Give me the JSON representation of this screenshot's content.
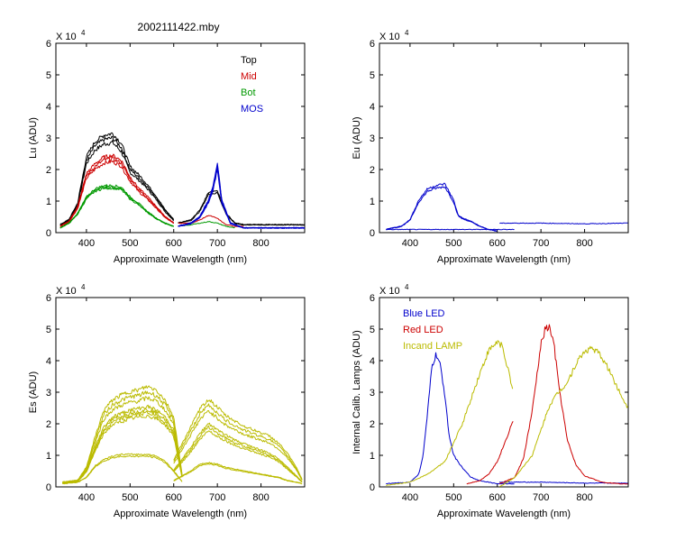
{
  "figure": {
    "title": "2002111422.mby"
  },
  "chart_data": [
    {
      "id": "lu",
      "type": "line",
      "ylabel": "Lu (ADU)",
      "xlabel": "Approximate Wavelength (nm)",
      "scale_label": "X 10",
      "scale_exp": "4",
      "xlim": [
        330,
        900
      ],
      "ylim": [
        0,
        6
      ],
      "xticks": [
        400,
        500,
        600,
        700,
        800
      ],
      "yticks": [
        0,
        1,
        2,
        3,
        4,
        5,
        6
      ],
      "legend": [
        {
          "label": "Top",
          "color": "#000000"
        },
        {
          "label": "Mid",
          "color": "#cc0000"
        },
        {
          "label": "Bot",
          "color": "#009900"
        },
        {
          "label": "MOS",
          "color": "#0000cc"
        }
      ],
      "series": [
        {
          "name": "Top",
          "color": "#000000",
          "copies": 3,
          "spread": 0.08,
          "x": [
            340,
            360,
            380,
            400,
            420,
            440,
            460,
            480,
            500,
            520,
            540,
            560,
            580,
            600
          ],
          "y": [
            0.25,
            0.4,
            0.9,
            2.3,
            2.75,
            2.95,
            3.0,
            2.7,
            2.0,
            1.75,
            1.45,
            1.1,
            0.7,
            0.4
          ]
        },
        {
          "name": "Mid",
          "color": "#cc0000",
          "copies": 3,
          "spread": 0.07,
          "x": [
            340,
            360,
            380,
            400,
            420,
            440,
            460,
            480,
            500,
            520,
            540,
            560,
            580,
            600
          ],
          "y": [
            0.2,
            0.35,
            0.8,
            1.8,
            2.1,
            2.3,
            2.35,
            2.2,
            1.7,
            1.35,
            1.1,
            0.8,
            0.5,
            0.3
          ]
        },
        {
          "name": "Bot",
          "color": "#009900",
          "copies": 3,
          "spread": 0.05,
          "x": [
            340,
            360,
            380,
            400,
            420,
            440,
            460,
            480,
            500,
            520,
            540,
            560,
            580,
            600
          ],
          "y": [
            0.15,
            0.3,
            0.6,
            1.1,
            1.35,
            1.45,
            1.45,
            1.4,
            1.1,
            0.9,
            0.65,
            0.45,
            0.3,
            0.2
          ]
        },
        {
          "name": "Top NIR",
          "color": "#000000",
          "copies": 2,
          "spread": 0.05,
          "x": [
            610,
            640,
            660,
            680,
            700,
            720,
            740,
            760,
            800,
            840,
            880,
            900
          ],
          "y": [
            0.3,
            0.4,
            0.7,
            1.25,
            1.3,
            0.6,
            0.3,
            0.25,
            0.25,
            0.25,
            0.25,
            0.25
          ]
        },
        {
          "name": "Mid NIR",
          "color": "#cc0000",
          "copies": 1,
          "spread": 0.0,
          "x": [
            610,
            640,
            660,
            680,
            700,
            720,
            740,
            760
          ],
          "y": [
            0.3,
            0.3,
            0.4,
            0.55,
            0.45,
            0.25,
            0.2,
            0.2
          ]
        },
        {
          "name": "Bot NIR",
          "color": "#009900",
          "copies": 1,
          "spread": 0.0,
          "x": [
            610,
            640,
            660,
            680,
            700,
            720,
            740
          ],
          "y": [
            0.2,
            0.25,
            0.3,
            0.35,
            0.3,
            0.2,
            0.15
          ]
        },
        {
          "name": "MOS",
          "color": "#0000cc",
          "copies": 5,
          "spread": 0.08,
          "x": [
            610,
            640,
            660,
            680,
            690,
            700,
            710,
            730,
            760,
            800,
            850,
            900
          ],
          "y": [
            0.2,
            0.3,
            0.5,
            1.0,
            1.4,
            2.1,
            1.0,
            0.3,
            0.15,
            0.15,
            0.15,
            0.15
          ]
        }
      ]
    },
    {
      "id": "eu",
      "type": "line",
      "ylabel": "Eu  (ADU)",
      "xlabel": "Approximate Wavelength (nm)",
      "scale_label": "X 10",
      "scale_exp": "4",
      "xlim": [
        330,
        900
      ],
      "ylim": [
        0,
        6
      ],
      "xticks": [
        400,
        500,
        600,
        700,
        800
      ],
      "yticks": [
        0,
        1,
        2,
        3,
        4,
        5,
        6
      ],
      "series": [
        {
          "name": "Eu",
          "color": "#0000cc",
          "copies": 2,
          "spread": 0.05,
          "x": [
            345,
            360,
            380,
            400,
            420,
            440,
            460,
            480,
            500,
            510,
            520,
            540,
            560,
            580,
            600
          ],
          "y": [
            0.1,
            0.15,
            0.2,
            0.4,
            1.0,
            1.35,
            1.45,
            1.5,
            1.0,
            0.55,
            0.45,
            0.35,
            0.2,
            0.1,
            0.05
          ]
        },
        {
          "name": "Eu base",
          "color": "#0000cc",
          "copies": 1,
          "spread": 0.0,
          "x": [
            345,
            640
          ],
          "y": [
            0.1,
            0.1
          ]
        },
        {
          "name": "Eu NIR",
          "color": "#0000cc",
          "copies": 1,
          "spread": 0.0,
          "x": [
            605,
            700,
            800,
            900
          ],
          "y": [
            0.3,
            0.3,
            0.28,
            0.3
          ]
        }
      ]
    },
    {
      "id": "es",
      "type": "line",
      "ylabel": "Es  (ADU)",
      "xlabel": "Approximate Wavelength (nm)",
      "scale_label": "X 10",
      "scale_exp": "4",
      "xlim": [
        330,
        900
      ],
      "ylim": [
        0,
        6
      ],
      "xticks": [
        400,
        500,
        600,
        700,
        800
      ],
      "yticks": [
        0,
        1,
        2,
        3,
        4,
        5,
        6
      ],
      "series": [
        {
          "name": "Es high",
          "color": "#bbbb00",
          "copies": 3,
          "spread": 0.1,
          "x": [
            345,
            380,
            400,
            420,
            440,
            460,
            480,
            500,
            520,
            540,
            560,
            580,
            600,
            620
          ],
          "y": [
            0.15,
            0.2,
            0.6,
            1.5,
            2.3,
            2.6,
            2.75,
            2.85,
            2.9,
            3.0,
            2.9,
            2.6,
            2.1,
            0.3
          ]
        },
        {
          "name": "Es mid",
          "color": "#bbbb00",
          "copies": 4,
          "spread": 0.1,
          "x": [
            345,
            380,
            400,
            420,
            440,
            460,
            480,
            500,
            520,
            540,
            560,
            580,
            600,
            620
          ],
          "y": [
            0.12,
            0.18,
            0.5,
            1.2,
            1.8,
            2.1,
            2.2,
            2.3,
            2.35,
            2.4,
            2.3,
            2.1,
            1.7,
            0.25
          ]
        },
        {
          "name": "Es low",
          "color": "#bbbb00",
          "copies": 2,
          "spread": 0.05,
          "x": [
            345,
            380,
            400,
            420,
            440,
            460,
            480,
            500,
            520,
            540,
            560,
            580,
            600,
            620
          ],
          "y": [
            0.1,
            0.15,
            0.3,
            0.65,
            0.85,
            0.95,
            1.0,
            1.0,
            1.0,
            1.0,
            0.95,
            0.8,
            0.5,
            0.15
          ]
        },
        {
          "name": "Es NIR high",
          "color": "#bbbb00",
          "copies": 3,
          "spread": 0.12,
          "x": [
            600,
            640,
            660,
            680,
            700,
            720,
            740,
            760,
            780,
            800,
            820,
            840,
            860,
            880,
            895
          ],
          "y": [
            0.8,
            1.8,
            2.3,
            2.6,
            2.35,
            2.1,
            1.95,
            1.8,
            1.7,
            1.6,
            1.5,
            1.3,
            1.0,
            0.6,
            0.2
          ]
        },
        {
          "name": "Es NIR mid",
          "color": "#bbbb00",
          "copies": 3,
          "spread": 0.1,
          "x": [
            600,
            640,
            660,
            680,
            700,
            720,
            740,
            760,
            780,
            800,
            820,
            840,
            860,
            880,
            895
          ],
          "y": [
            0.5,
            1.2,
            1.6,
            1.9,
            1.7,
            1.55,
            1.4,
            1.3,
            1.2,
            1.1,
            1.0,
            0.85,
            0.6,
            0.35,
            0.15
          ]
        },
        {
          "name": "Es NIR low",
          "color": "#bbbb00",
          "copies": 2,
          "spread": 0.05,
          "x": [
            600,
            640,
            660,
            680,
            700,
            720,
            740,
            760,
            780,
            800,
            820,
            840,
            860,
            880,
            895
          ],
          "y": [
            0.2,
            0.5,
            0.7,
            0.75,
            0.7,
            0.6,
            0.55,
            0.5,
            0.45,
            0.4,
            0.35,
            0.3,
            0.2,
            0.15,
            0.1
          ]
        }
      ]
    },
    {
      "id": "calib",
      "type": "line",
      "ylabel": "Internal Calib. Lamps (ADU)",
      "xlabel": "Approximate Wavelength (nm)",
      "scale_label": "X 10",
      "scale_exp": "4",
      "xlim": [
        330,
        900
      ],
      "ylim": [
        0,
        6
      ],
      "xticks": [
        400,
        500,
        600,
        700,
        800
      ],
      "yticks": [
        0,
        1,
        2,
        3,
        4,
        5,
        6
      ],
      "legend": [
        {
          "label": "Blue LED",
          "color": "#0000cc"
        },
        {
          "label": "Red LED",
          "color": "#cc0000"
        },
        {
          "label": "Incand LAMP",
          "color": "#bbbb00"
        }
      ],
      "series": [
        {
          "name": "Blue LED",
          "color": "#0000cc",
          "copies": 1,
          "spread": 0.0,
          "x": [
            345,
            400,
            420,
            430,
            440,
            450,
            460,
            470,
            480,
            490,
            500,
            520,
            540,
            560,
            580,
            600,
            640
          ],
          "y": [
            0.1,
            0.15,
            0.4,
            1.0,
            2.3,
            3.8,
            4.2,
            3.8,
            2.9,
            1.6,
            1.0,
            0.6,
            0.3,
            0.2,
            0.15,
            0.1,
            0.1
          ]
        },
        {
          "name": "Blue LED NIR",
          "color": "#0000cc",
          "copies": 1,
          "spread": 0.0,
          "x": [
            605,
            700,
            800,
            900
          ],
          "y": [
            0.15,
            0.15,
            0.12,
            0.12
          ]
        },
        {
          "name": "Red LED",
          "color": "#cc0000",
          "copies": 1,
          "spread": 0.0,
          "x": [
            530,
            560,
            580,
            600,
            620,
            636
          ],
          "y": [
            0.1,
            0.2,
            0.4,
            0.8,
            1.5,
            2.1
          ]
        },
        {
          "name": "Red LED NIR",
          "color": "#cc0000",
          "copies": 1,
          "spread": 0.0,
          "x": [
            605,
            640,
            660,
            680,
            700,
            710,
            720,
            730,
            740,
            760,
            780,
            800,
            840,
            880,
            900
          ],
          "y": [
            0.1,
            0.3,
            0.9,
            2.4,
            4.5,
            5.0,
            5.05,
            4.5,
            3.3,
            1.5,
            0.7,
            0.35,
            0.15,
            0.1,
            0.1
          ]
        },
        {
          "name": "Incand LAMP",
          "color": "#bbbb00",
          "copies": 1,
          "spread": 0.0,
          "x": [
            345,
            400,
            440,
            480,
            500,
            520,
            540,
            560,
            580,
            600,
            610,
            620,
            636
          ],
          "y": [
            0.05,
            0.15,
            0.4,
            0.8,
            1.4,
            2.0,
            2.8,
            3.6,
            4.3,
            4.6,
            4.5,
            4.0,
            3.0
          ]
        },
        {
          "name": "Incand LAMP NIR",
          "color": "#bbbb00",
          "copies": 1,
          "spread": 0.0,
          "x": [
            605,
            640,
            680,
            700,
            720,
            740,
            760,
            780,
            800,
            820,
            840,
            860,
            880,
            900
          ],
          "y": [
            0.0,
            0.3,
            1.0,
            1.8,
            2.6,
            3.0,
            3.3,
            3.9,
            4.3,
            4.4,
            4.1,
            3.6,
            3.0,
            2.5
          ]
        }
      ]
    }
  ]
}
